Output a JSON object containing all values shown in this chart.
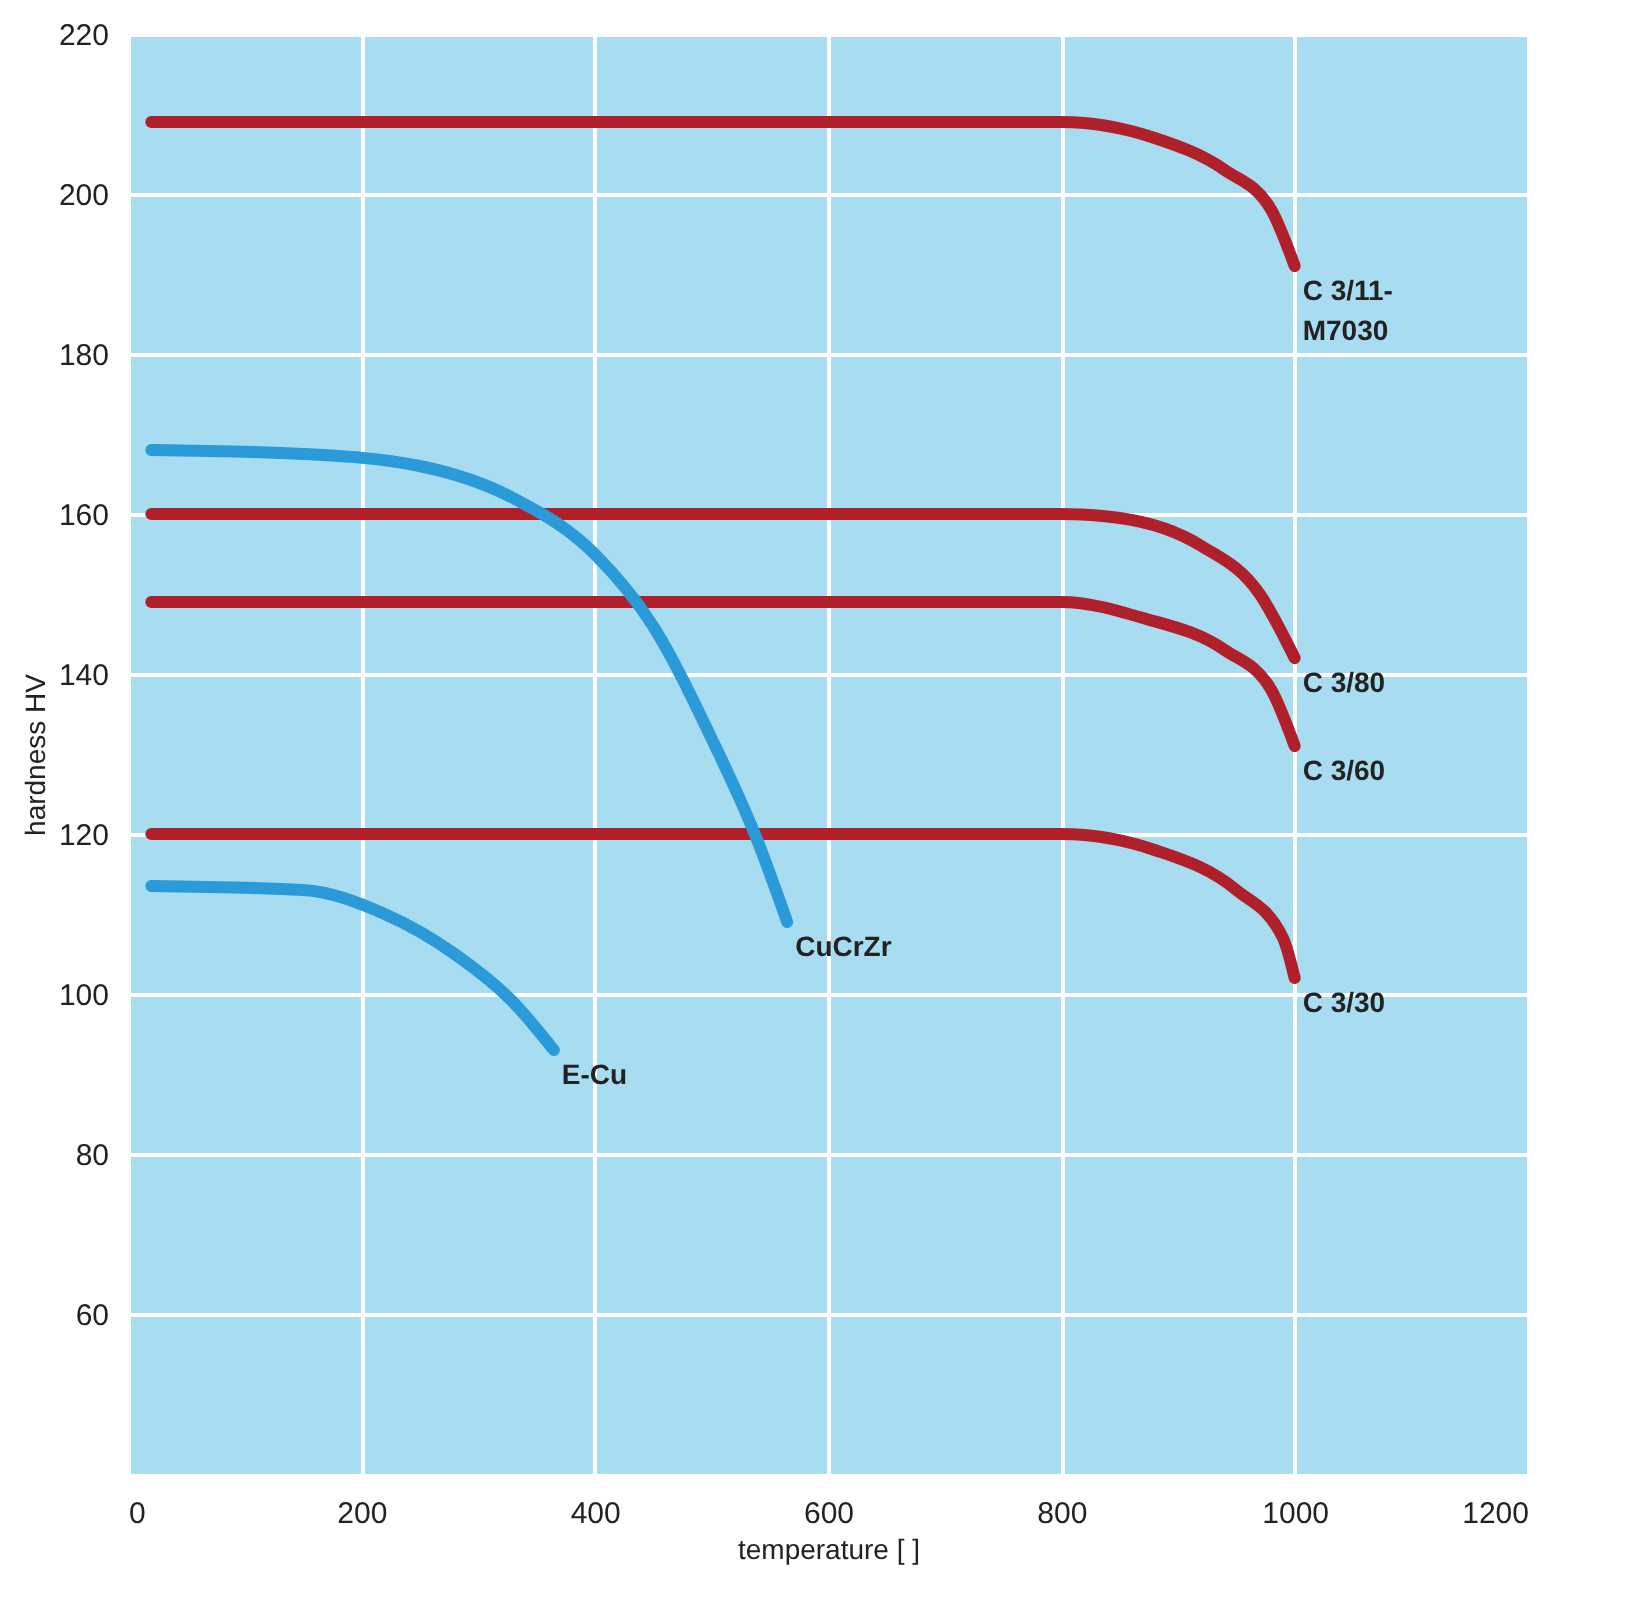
{
  "chart_data": {
    "type": "line",
    "xlabel": "temperature [ ]",
    "ylabel": "hardness HV",
    "xlim": [
      0,
      1200
    ],
    "ylim": [
      40,
      220
    ],
    "xticks": [
      0,
      200,
      400,
      600,
      800,
      1000,
      1200
    ],
    "yticks": [
      60,
      80,
      100,
      120,
      140,
      160,
      180,
      200,
      220
    ],
    "grid": true,
    "marker": "none",
    "line_style": "solid",
    "legend": false,
    "series": [
      {
        "name": "C 3/11-M7030",
        "color": "#b0202a",
        "x": [
          20,
          800,
          880,
          940,
          980,
          1000
        ],
        "values": [
          209,
          209,
          207,
          203,
          198,
          191
        ]
      },
      {
        "name": "C 3/80",
        "color": "#b0202a",
        "x": [
          20,
          800,
          850,
          920,
          970,
          1000
        ],
        "values": [
          160,
          160,
          159.5,
          156,
          150,
          142
        ]
      },
      {
        "name": "C 3/60",
        "color": "#b0202a",
        "x": [
          20,
          800,
          870,
          940,
          980,
          1000
        ],
        "values": [
          149,
          149,
          147,
          143,
          138,
          131
        ]
      },
      {
        "name": "C 3/30",
        "color": "#b0202a",
        "x": [
          20,
          800,
          880,
          950,
          990,
          1000
        ],
        "values": [
          120,
          120,
          118,
          113,
          107,
          102
        ]
      },
      {
        "name": "CuCrZr",
        "color": "#2a9ad8",
        "x": [
          20,
          150,
          250,
          330,
          400,
          450,
          500,
          540,
          565
        ],
        "values": [
          168,
          167.5,
          166,
          162,
          155,
          146,
          132,
          119,
          109
        ]
      },
      {
        "name": "E-Cu",
        "color": "#2a9ad8",
        "x": [
          20,
          150,
          220,
          280,
          330,
          365
        ],
        "values": [
          113.5,
          113,
          110,
          105,
          99,
          93
        ]
      }
    ]
  }
}
